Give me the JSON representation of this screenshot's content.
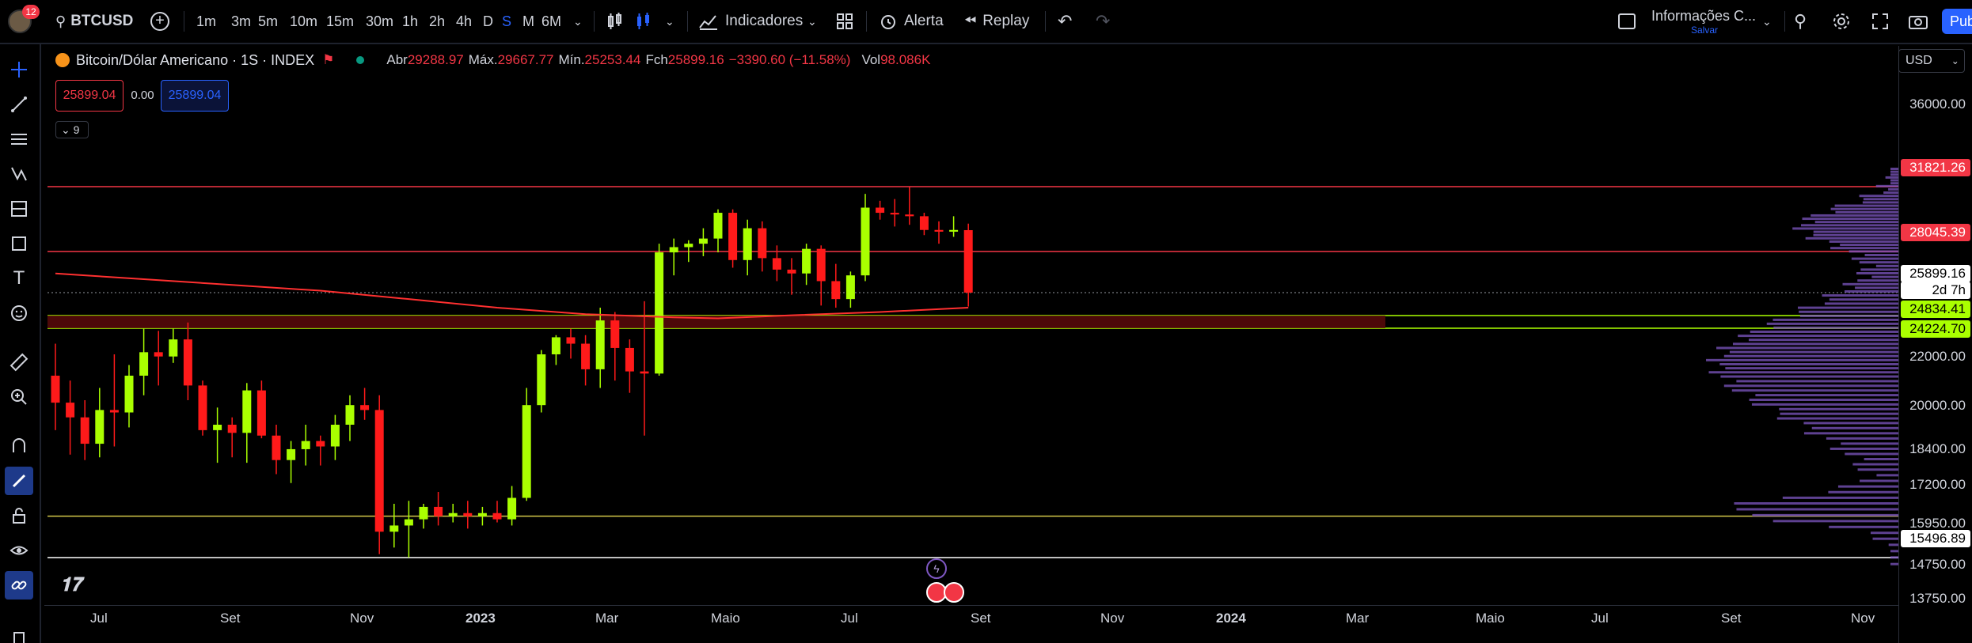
{
  "header": {
    "notifications": "12",
    "symbol": "BTCUSD",
    "timeframes": [
      "1m",
      "3m",
      "5m",
      "10m",
      "15m",
      "30m",
      "1h",
      "2h",
      "4h",
      "D",
      "S",
      "M",
      "6M"
    ],
    "active_timeframe": "S",
    "indicators_label": "Indicadores",
    "alert_label": "Alerta",
    "replay_label": "Replay",
    "layout_name": "Informações C...",
    "layout_status": "Salvar",
    "publish_label": "Pub"
  },
  "legend": {
    "title": "Bitcoin/Dólar Americano · 1S · INDEX",
    "open_label": "Abr",
    "open": "29288.97",
    "high_label": "Máx.",
    "high": "29667.77",
    "low_label": "Mín.",
    "low": "25253.44",
    "close_label": "Fch",
    "close": "25899.16",
    "change": "−3390.60 (−11.58%)",
    "vol_label": "Vol",
    "vol": "98.086K",
    "sell": "25899.04",
    "spread": "0.00",
    "buy": "25899.04",
    "indicators_count": "9"
  },
  "price_scale": {
    "currency": "USD",
    "ticks": [
      "36000.00",
      "22000.00",
      "20000.00",
      "18400.00",
      "17200.00",
      "15950.00",
      "14750.00",
      "13750.00"
    ],
    "levels": [
      {
        "value": "31821.26",
        "bg": "#f23645",
        "fg": "#ffffff"
      },
      {
        "value": "28045.39",
        "bg": "#f23645",
        "fg": "#ffffff"
      },
      {
        "value": "25899.16",
        "bg": "#ffffff",
        "fg": "#000000"
      },
      {
        "value": "2d 7h",
        "bg": "#ffffff",
        "fg": "#000000"
      },
      {
        "value": "24834.41",
        "bg": "#aaff00",
        "fg": "#000000"
      },
      {
        "value": "24224.70",
        "bg": "#aaff00",
        "fg": "#000000"
      },
      {
        "value": "15496.89",
        "bg": "#ffffff",
        "fg": "#000000"
      }
    ]
  },
  "time_scale": {
    "labels": [
      "Jul",
      "Set",
      "Nov",
      "2023",
      "Mar",
      "Maio",
      "Jul",
      "Set",
      "Nov",
      "2024",
      "Mar",
      "Maio",
      "Jul",
      "Set",
      "Nov"
    ]
  },
  "colors": {
    "up": "#aaff00",
    "down": "#ff1a1a",
    "accent": "#2962ff",
    "volume_profile": "#7e57c2"
  },
  "chart_data": {
    "type": "candlestick",
    "title": "Bitcoin/Dólar Americano · 1S · INDEX",
    "interval": "1S",
    "ylim": [
      13750,
      36000
    ],
    "horizontal_levels": [
      31821.26,
      28045.39,
      25899.16,
      24834.41,
      24224.7,
      15496.89
    ],
    "candles": [
      [
        22000,
        23500,
        19800,
        20900
      ],
      [
        20900,
        21800,
        18900,
        20300
      ],
      [
        20300,
        21000,
        18700,
        19300
      ],
      [
        19300,
        21500,
        18800,
        20600
      ],
      [
        20600,
        23000,
        19200,
        20500
      ],
      [
        20500,
        22500,
        19900,
        22000
      ],
      [
        22000,
        24200,
        21200,
        23100
      ],
      [
        23100,
        24100,
        21600,
        22900
      ],
      [
        22900,
        24200,
        22600,
        23700
      ],
      [
        23700,
        24500,
        21000,
        21600
      ],
      [
        21600,
        21800,
        19600,
        19800
      ],
      [
        19800,
        20700,
        18600,
        20000
      ],
      [
        20000,
        20300,
        18800,
        19700
      ],
      [
        19700,
        21700,
        18600,
        21400
      ],
      [
        21400,
        21800,
        19500,
        19600
      ],
      [
        19600,
        20000,
        18200,
        18700
      ],
      [
        18700,
        19400,
        17900,
        19100
      ],
      [
        19100,
        20000,
        18500,
        19400
      ],
      [
        19400,
        19600,
        18500,
        19200
      ],
      [
        19200,
        20400,
        18700,
        20000
      ],
      [
        20000,
        21200,
        19400,
        20800
      ],
      [
        20800,
        21500,
        20200,
        20600
      ],
      [
        20600,
        21200,
        15600,
        16300
      ],
      [
        16300,
        17200,
        15800,
        16500
      ],
      [
        16500,
        17300,
        15500,
        16700
      ],
      [
        16700,
        17200,
        16400,
        17100
      ],
      [
        17100,
        17600,
        16500,
        16800
      ],
      [
        16800,
        17200,
        16600,
        16900
      ],
      [
        16900,
        17300,
        16400,
        16800
      ],
      [
        16800,
        17100,
        16500,
        16900
      ],
      [
        16900,
        17300,
        16600,
        16700
      ],
      [
        16700,
        17800,
        16500,
        17400
      ],
      [
        17400,
        21500,
        17300,
        20800
      ],
      [
        20800,
        23200,
        20500,
        23000
      ],
      [
        23000,
        23900,
        22500,
        23800
      ],
      [
        23800,
        24200,
        22800,
        23500
      ],
      [
        23500,
        23900,
        21600,
        22300
      ],
      [
        22300,
        25200,
        21500,
        24600
      ],
      [
        24600,
        25000,
        21800,
        23300
      ],
      [
        23300,
        23700,
        21300,
        22200
      ],
      [
        22200,
        25500,
        19600,
        22100
      ],
      [
        22100,
        28500,
        22000,
        28000
      ],
      [
        28000,
        28800,
        26800,
        28300
      ],
      [
        28300,
        28700,
        27500,
        28500
      ],
      [
        28500,
        29400,
        27800,
        28800
      ],
      [
        28800,
        30500,
        28000,
        30300
      ],
      [
        30300,
        30500,
        27200,
        27600
      ],
      [
        27600,
        29900,
        26800,
        29400
      ],
      [
        29400,
        29800,
        27000,
        27700
      ],
      [
        27700,
        28400,
        26500,
        27100
      ],
      [
        27100,
        27700,
        25800,
        26900
      ],
      [
        26900,
        28500,
        26300,
        28200
      ],
      [
        28200,
        28400,
        25300,
        26500
      ],
      [
        26500,
        27400,
        25200,
        25600
      ],
      [
        25600,
        27000,
        25200,
        26800
      ],
      [
        26800,
        31400,
        26500,
        30600
      ],
      [
        30600,
        31000,
        29900,
        30300
      ],
      [
        30300,
        31100,
        29500,
        30200
      ],
      [
        30200,
        31800,
        29600,
        30100
      ],
      [
        30100,
        30300,
        29000,
        29300
      ],
      [
        29300,
        29800,
        28500,
        29200
      ],
      [
        29200,
        30100,
        28900,
        29300
      ],
      [
        29288.97,
        29667.77,
        25253.44,
        25899.16
      ]
    ],
    "moving_average": [
      [
        0,
        26900
      ],
      [
        6,
        26600
      ],
      [
        12,
        26300
      ],
      [
        18,
        26000
      ],
      [
        24,
        25600
      ],
      [
        30,
        25200
      ],
      [
        36,
        24900
      ],
      [
        42,
        24750
      ],
      [
        45,
        24700
      ],
      [
        50,
        24850
      ],
      [
        56,
        25000
      ],
      [
        62,
        25200
      ]
    ],
    "zone": [
      24224.7,
      24834.41
    ]
  }
}
